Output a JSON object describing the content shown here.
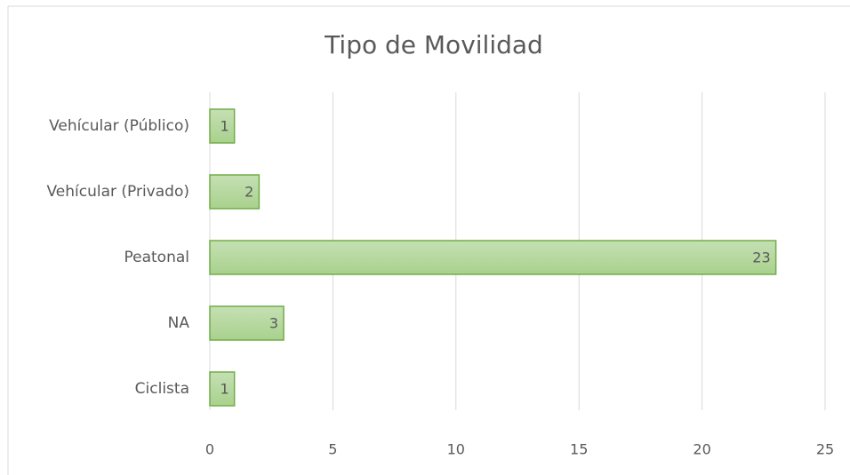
{
  "chart_data": {
    "type": "bar",
    "orientation": "horizontal",
    "title": "Tipo de Movilidad",
    "categories": [
      "Vehícular (Público)",
      "Vehícular (Privado)",
      "Peatonal",
      "NA",
      "Ciclista"
    ],
    "values": [
      1,
      2,
      23,
      3,
      1
    ],
    "color": "#a9d18e",
    "xlim": [
      0,
      25
    ],
    "xticks": [
      0,
      5,
      10,
      15,
      20,
      25
    ],
    "grid": true
  }
}
